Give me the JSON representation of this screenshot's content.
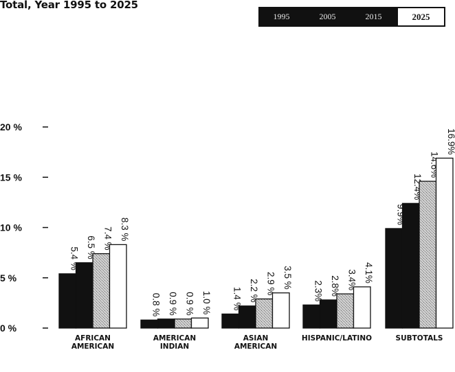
{
  "chart_data": {
    "type": "bar",
    "title": "Total, Year 1995 to 2025",
    "legend": [
      "1995",
      "2005",
      "2015",
      "2025"
    ],
    "categories": [
      "AFRICAN AMERICAN",
      "AMERICAN INDIAN",
      "ASIAN AMERICAN",
      "HISPANIC/LATINO",
      "SUBTOTALS"
    ],
    "series": [
      {
        "name": "1995",
        "values": [
          5.4,
          0.8,
          1.4,
          2.3,
          9.9
        ]
      },
      {
        "name": "2005",
        "values": [
          6.5,
          0.9,
          2.2,
          2.8,
          12.4
        ]
      },
      {
        "name": "2015",
        "values": [
          7.4,
          0.9,
          2.9,
          3.4,
          14.6
        ]
      },
      {
        "name": "2025",
        "values": [
          8.3,
          1.0,
          3.5,
          4.1,
          16.9
        ]
      }
    ],
    "data_labels": [
      [
        "5.4 %",
        "0.8 %",
        "1.4 %",
        "2.3%",
        "9.9%"
      ],
      [
        "6.5 %",
        "0.9 %",
        "2.2 %",
        "2.8%",
        "12.4%"
      ],
      [
        "7.4 %",
        "0.9 %",
        "2.9 %",
        "3.4%",
        "14.6%"
      ],
      [
        "8.3 %",
        "1.0 %",
        "3.5 %",
        "4.1%",
        "16.9%"
      ]
    ],
    "y_ticks": [
      0,
      5,
      10,
      15,
      20
    ],
    "y_tick_labels": [
      "0 %",
      "5 %",
      "10 %",
      "15 %",
      "20 %"
    ],
    "ylim": [
      0,
      20
    ],
    "grid": false,
    "legend_position": "top-right",
    "colors": [
      "#111111",
      "#111111",
      "#b8b8b8",
      "#ffffff"
    ]
  }
}
